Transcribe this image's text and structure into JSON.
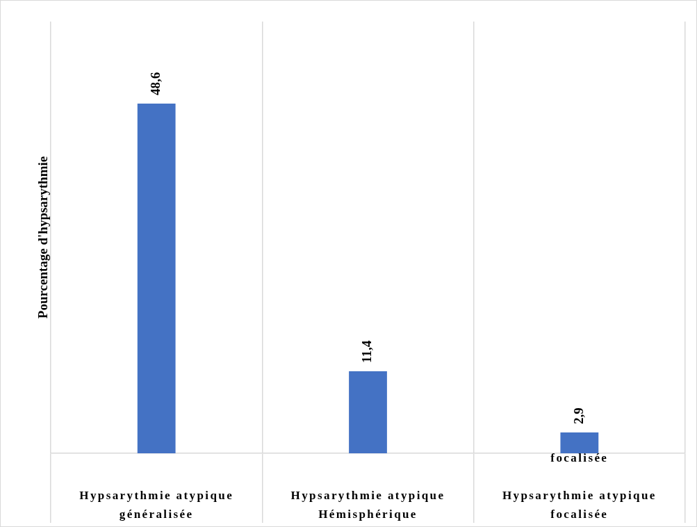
{
  "chart_data": {
    "type": "bar",
    "ylabel": "Pourcentage d'hypsarythmie",
    "categories": [
      "Hypsarythmie atypique\ngénéralisée",
      "Hypsarythmie atypique\nHémisphérique",
      "focalisée\n\nHypsarythmie atypique\nfocalisée"
    ],
    "values": [
      48.6,
      11.4,
      2.9
    ],
    "color": "#4472c4",
    "value_labels": [
      "48,6",
      "11,4",
      "2,9"
    ],
    "ylim": [
      0,
      60
    ],
    "grid": "x",
    "legend": false,
    "tick_labels": "x"
  }
}
